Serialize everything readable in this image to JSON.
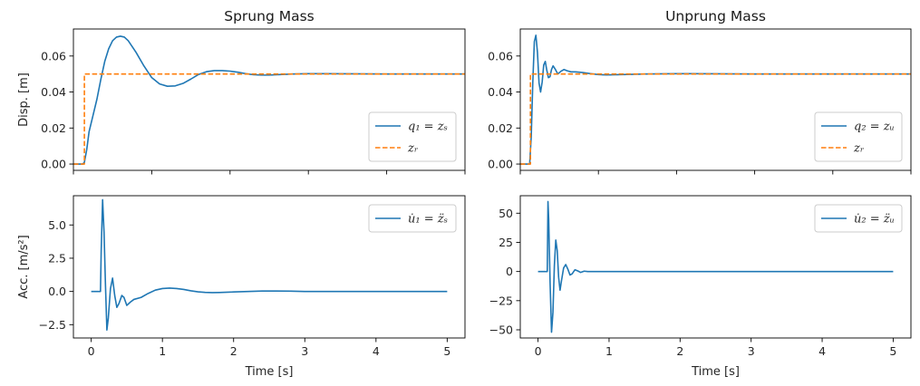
{
  "chart_data": [
    {
      "type": "line",
      "title": "Sprung Mass",
      "ylabel": "Disp. [m]",
      "xlabel": "",
      "xlim": [
        0,
        5
      ],
      "ylim": [
        -0.0035,
        0.075
      ],
      "xticks": [
        0,
        1,
        2,
        3,
        4,
        5
      ],
      "yticks": [
        "0.00",
        "0.02",
        "0.04",
        "0.06"
      ],
      "ytick_values": [
        0,
        0.02,
        0.04,
        0.06
      ],
      "show_xtick_labels": false,
      "legend_position": "lower right",
      "grid": false,
      "series": [
        {
          "name": "q₁ = zₛ",
          "color": "#1f77b4",
          "style": "solid",
          "points": [
            [
              0,
              0
            ],
            [
              0.12,
              0
            ],
            [
              0.14,
              0.001
            ],
            [
              0.17,
              0.008
            ],
            [
              0.2,
              0.018
            ],
            [
              0.25,
              0.027
            ],
            [
              0.3,
              0.036
            ],
            [
              0.35,
              0.047
            ],
            [
              0.4,
              0.057
            ],
            [
              0.45,
              0.064
            ],
            [
              0.5,
              0.0685
            ],
            [
              0.55,
              0.0705
            ],
            [
              0.6,
              0.071
            ],
            [
              0.65,
              0.0705
            ],
            [
              0.7,
              0.0685
            ],
            [
              0.8,
              0.062
            ],
            [
              0.9,
              0.0545
            ],
            [
              1.0,
              0.048
            ],
            [
              1.1,
              0.0445
            ],
            [
              1.2,
              0.0432
            ],
            [
              1.3,
              0.0434
            ],
            [
              1.4,
              0.0448
            ],
            [
              1.5,
              0.0472
            ],
            [
              1.6,
              0.0498
            ],
            [
              1.7,
              0.0513
            ],
            [
              1.8,
              0.0519
            ],
            [
              1.9,
              0.0519
            ],
            [
              2.0,
              0.0516
            ],
            [
              2.1,
              0.051
            ],
            [
              2.2,
              0.0502
            ],
            [
              2.3,
              0.0496
            ],
            [
              2.4,
              0.0494
            ],
            [
              2.5,
              0.0494
            ],
            [
              2.6,
              0.0496
            ],
            [
              2.8,
              0.05
            ],
            [
              3.0,
              0.0502
            ],
            [
              3.2,
              0.0502
            ],
            [
              3.5,
              0.0501
            ],
            [
              4.0,
              0.05
            ],
            [
              5.0,
              0.05
            ]
          ]
        },
        {
          "name": "zᵣ",
          "color": "#ff7f0e",
          "style": "dashed",
          "points": [
            [
              0,
              0
            ],
            [
              0.14,
              0
            ],
            [
              0.14,
              0.05
            ],
            [
              5.0,
              0.05
            ]
          ]
        }
      ]
    },
    {
      "type": "line",
      "title": "Unprung Mass",
      "ylabel": "",
      "xlabel": "",
      "xlim": [
        0,
        5
      ],
      "ylim": [
        -0.0035,
        0.075
      ],
      "xticks": [
        0,
        1,
        2,
        3,
        4,
        5
      ],
      "yticks": [
        "0.00",
        "0.02",
        "0.04",
        "0.06"
      ],
      "ytick_values": [
        0,
        0.02,
        0.04,
        0.06
      ],
      "show_xtick_labels": false,
      "legend_position": "lower right",
      "grid": false,
      "series": [
        {
          "name": "q₂ = zᵤ",
          "color": "#1f77b4",
          "style": "solid",
          "points": [
            [
              0,
              0
            ],
            [
              0.12,
              0
            ],
            [
              0.14,
              0.015
            ],
            [
              0.16,
              0.045
            ],
            [
              0.18,
              0.068
            ],
            [
              0.2,
              0.0715
            ],
            [
              0.22,
              0.062
            ],
            [
              0.24,
              0.045
            ],
            [
              0.26,
              0.04
            ],
            [
              0.28,
              0.0455
            ],
            [
              0.3,
              0.055
            ],
            [
              0.32,
              0.057
            ],
            [
              0.34,
              0.052
            ],
            [
              0.36,
              0.048
            ],
            [
              0.38,
              0.0485
            ],
            [
              0.4,
              0.0525
            ],
            [
              0.42,
              0.0545
            ],
            [
              0.45,
              0.0525
            ],
            [
              0.48,
              0.05
            ],
            [
              0.52,
              0.0515
            ],
            [
              0.56,
              0.0525
            ],
            [
              0.6,
              0.0518
            ],
            [
              0.65,
              0.0512
            ],
            [
              0.7,
              0.0512
            ],
            [
              0.8,
              0.0508
            ],
            [
              0.9,
              0.0502
            ],
            [
              1.0,
              0.0497
            ],
            [
              1.1,
              0.0495
            ],
            [
              1.3,
              0.0497
            ],
            [
              1.6,
              0.05
            ],
            [
              2.0,
              0.0502
            ],
            [
              2.5,
              0.0501
            ],
            [
              3.0,
              0.05
            ],
            [
              5.0,
              0.05
            ]
          ]
        },
        {
          "name": "zᵣ",
          "color": "#ff7f0e",
          "style": "dashed",
          "points": [
            [
              0,
              0
            ],
            [
              0.13,
              0
            ],
            [
              0.13,
              0.05
            ],
            [
              5.0,
              0.05
            ]
          ]
        }
      ]
    },
    {
      "type": "line",
      "title": "",
      "ylabel": "Acc. [m/s²]",
      "xlabel": "Time [s]",
      "xlim": [
        -0.25,
        5.25
      ],
      "ylim": [
        -3.5,
        7.2
      ],
      "xticks": [
        0,
        1,
        2,
        3,
        4,
        5
      ],
      "yticks": [
        "−2.5",
        "0.0",
        "2.5",
        "5.0"
      ],
      "ytick_values": [
        -2.5,
        0,
        2.5,
        5
      ],
      "show_xtick_labels": true,
      "legend_position": "upper right",
      "grid": false,
      "series": [
        {
          "name": "u̇₁ = z̈ₛ",
          "color": "#1f77b4",
          "style": "solid",
          "points": [
            [
              0,
              0
            ],
            [
              0.13,
              0
            ],
            [
              0.14,
              3.0
            ],
            [
              0.16,
              6.9
            ],
            [
              0.18,
              4.5
            ],
            [
              0.2,
              0.5
            ],
            [
              0.22,
              -2.9
            ],
            [
              0.24,
              -2.0
            ],
            [
              0.27,
              0.2
            ],
            [
              0.3,
              1.0
            ],
            [
              0.33,
              -0.3
            ],
            [
              0.36,
              -1.2
            ],
            [
              0.39,
              -0.9
            ],
            [
              0.43,
              -0.3
            ],
            [
              0.46,
              -0.45
            ],
            [
              0.5,
              -1.05
            ],
            [
              0.55,
              -0.8
            ],
            [
              0.6,
              -0.6
            ],
            [
              0.7,
              -0.45
            ],
            [
              0.8,
              -0.15
            ],
            [
              0.9,
              0.1
            ],
            [
              1.0,
              0.22
            ],
            [
              1.1,
              0.25
            ],
            [
              1.2,
              0.22
            ],
            [
              1.3,
              0.15
            ],
            [
              1.4,
              0.05
            ],
            [
              1.5,
              -0.03
            ],
            [
              1.6,
              -0.07
            ],
            [
              1.7,
              -0.09
            ],
            [
              1.8,
              -0.08
            ],
            [
              2.0,
              -0.04
            ],
            [
              2.2,
              0
            ],
            [
              2.4,
              0.03
            ],
            [
              2.6,
              0.03
            ],
            [
              2.8,
              0.02
            ],
            [
              3.0,
              0
            ],
            [
              3.5,
              0
            ],
            [
              5.0,
              0
            ]
          ]
        }
      ]
    },
    {
      "type": "line",
      "title": "",
      "ylabel": "",
      "xlabel": "Time [s]",
      "xlim": [
        -0.25,
        5.25
      ],
      "ylim": [
        -57,
        65
      ],
      "xticks": [
        0,
        1,
        2,
        3,
        4,
        5
      ],
      "yticks": [
        "−50",
        "−25",
        "0",
        "25",
        "50"
      ],
      "ytick_values": [
        -50,
        -25,
        0,
        25,
        50
      ],
      "show_xtick_labels": true,
      "legend_position": "upper right",
      "grid": false,
      "series": [
        {
          "name": "u̇₂ = z̈ᵤ",
          "color": "#1f77b4",
          "style": "solid",
          "points": [
            [
              0,
              0
            ],
            [
              0.13,
              0
            ],
            [
              0.14,
              60
            ],
            [
              0.15,
              45
            ],
            [
              0.17,
              -10
            ],
            [
              0.19,
              -52
            ],
            [
              0.21,
              -35
            ],
            [
              0.23,
              5
            ],
            [
              0.25,
              27
            ],
            [
              0.27,
              18
            ],
            [
              0.29,
              -5
            ],
            [
              0.31,
              -16
            ],
            [
              0.33,
              -8
            ],
            [
              0.36,
              3
            ],
            [
              0.39,
              6
            ],
            [
              0.42,
              2
            ],
            [
              0.45,
              -3
            ],
            [
              0.48,
              -2
            ],
            [
              0.52,
              1.5
            ],
            [
              0.56,
              0.5
            ],
            [
              0.6,
              -0.8
            ],
            [
              0.65,
              0.3
            ],
            [
              0.7,
              0
            ],
            [
              5.0,
              0
            ]
          ]
        }
      ]
    }
  ]
}
